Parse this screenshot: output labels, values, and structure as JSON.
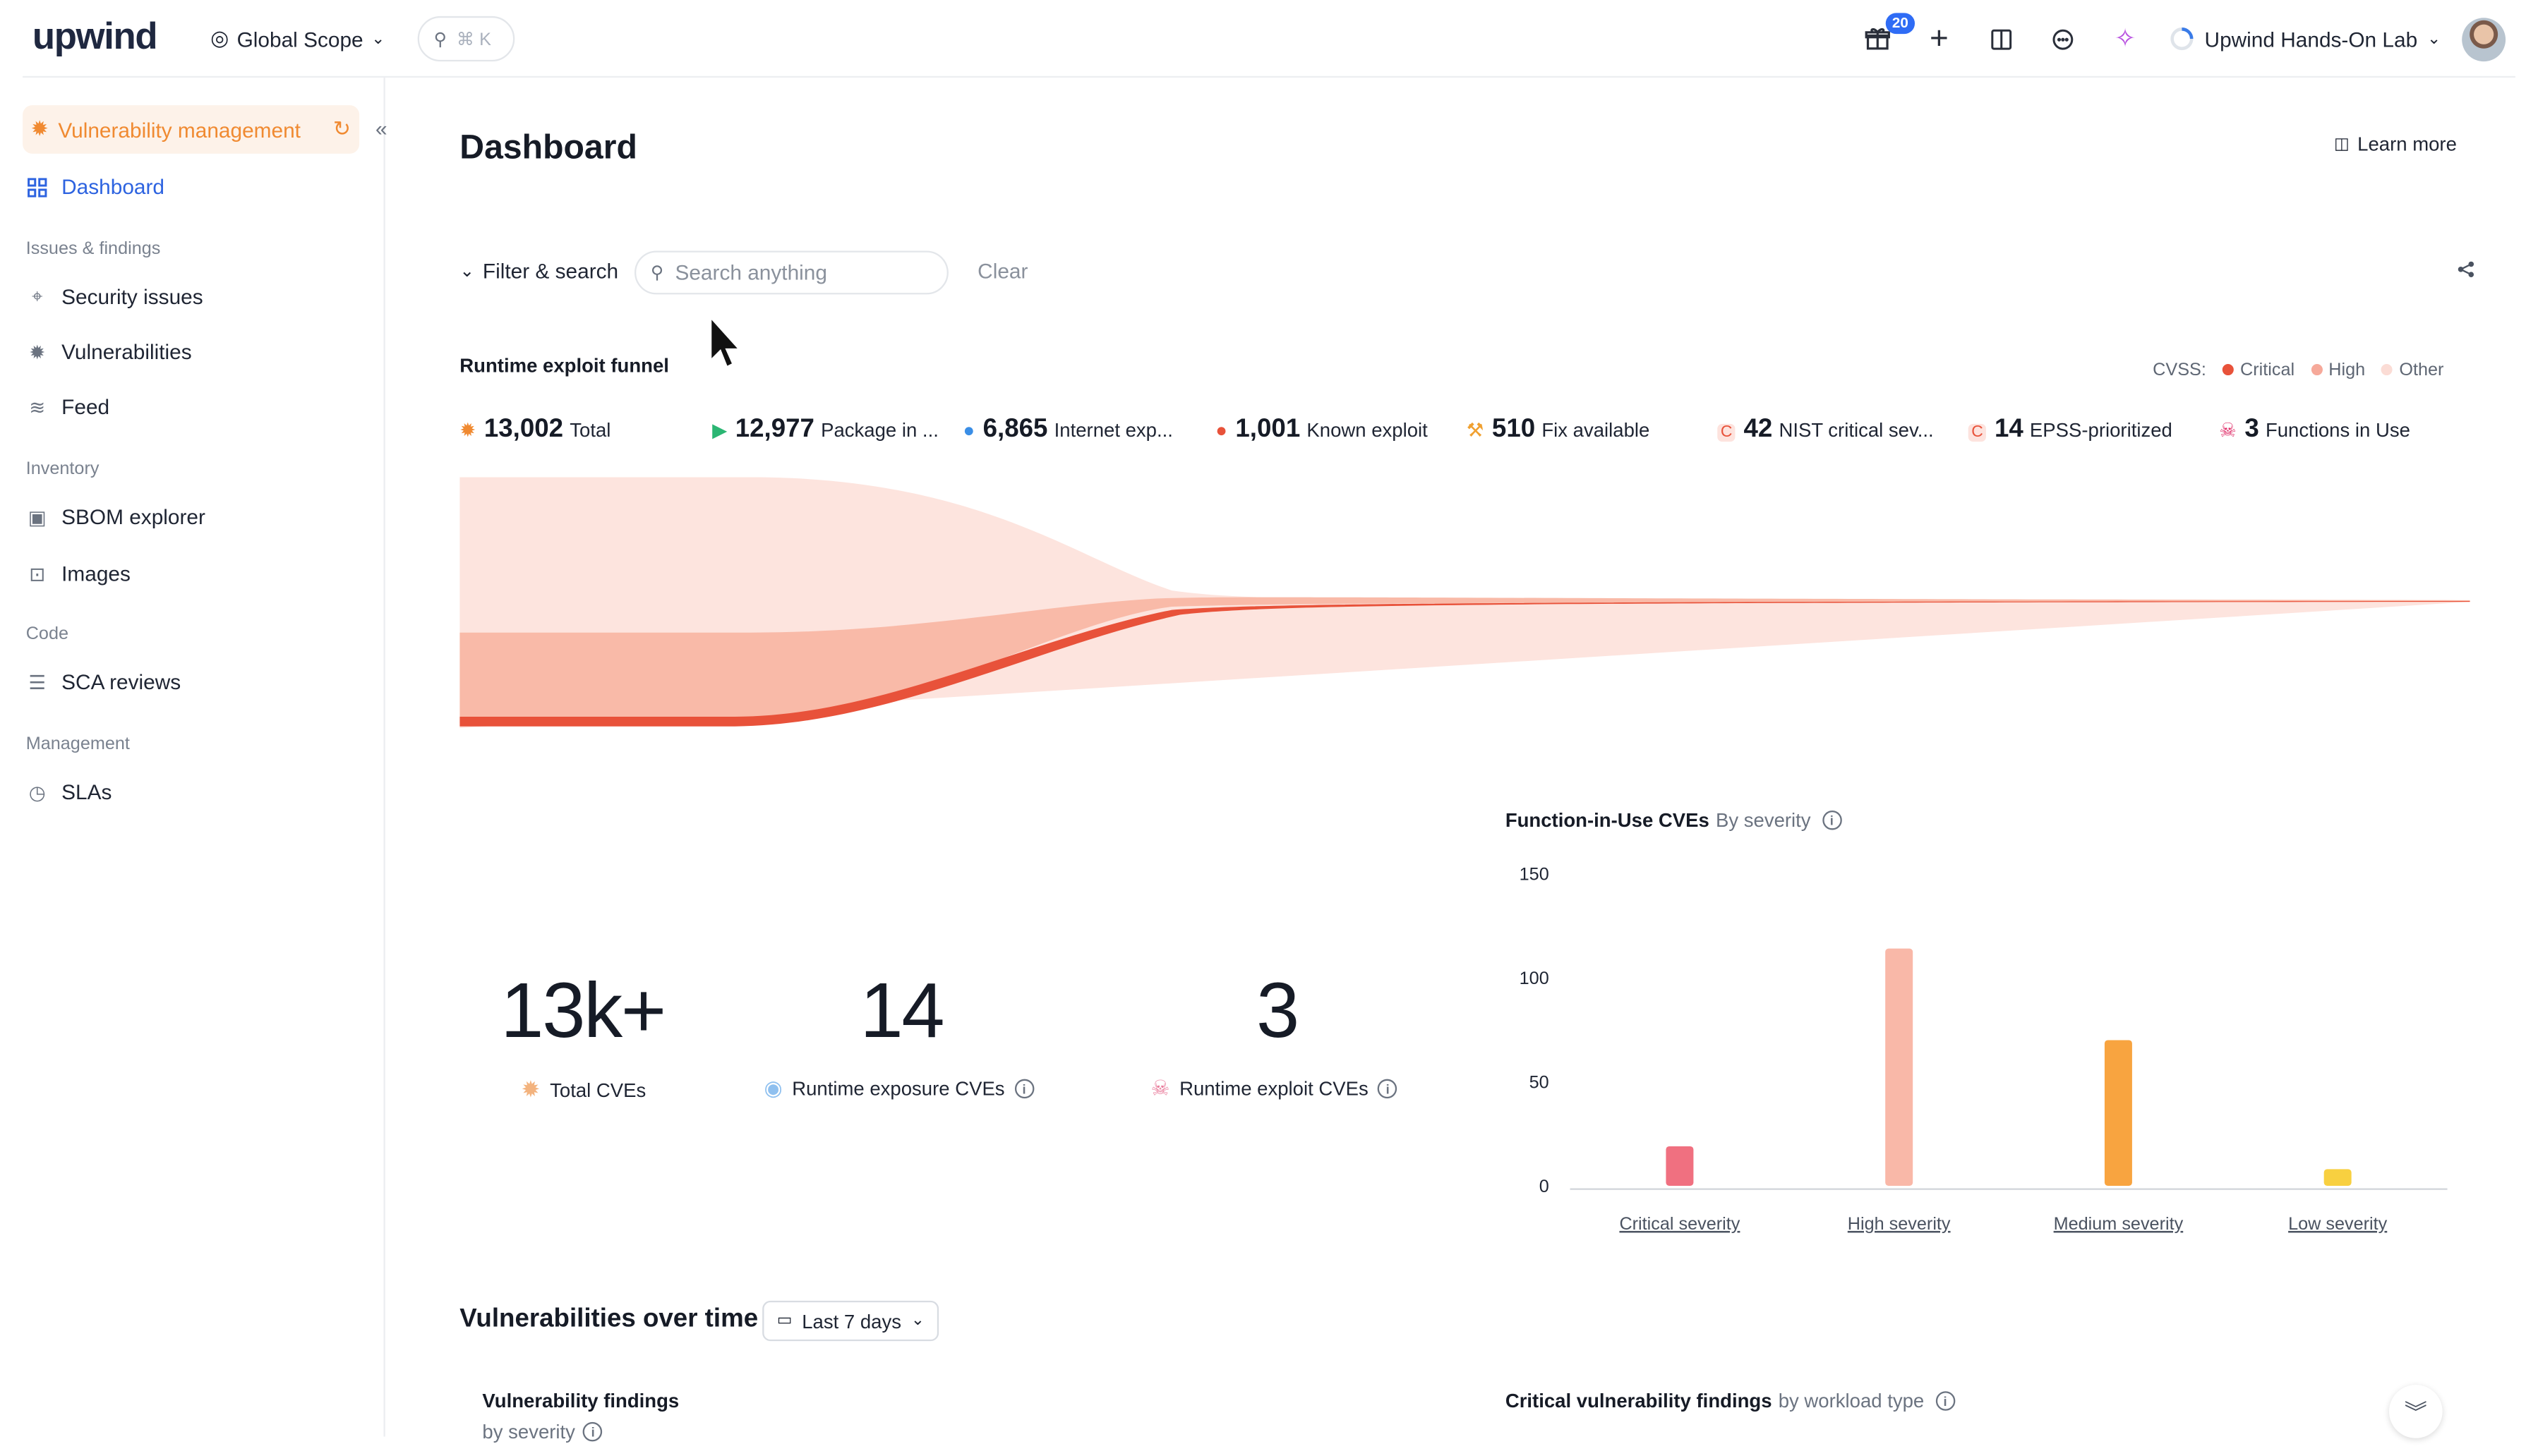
{
  "topbar": {
    "logo": "upwind",
    "scope": "Global Scope",
    "search_shortcut": "⌘ K",
    "gift_badge": "20",
    "org": "Upwind Hands-On Lab"
  },
  "sidebar": {
    "module": "Vulnerability management",
    "dashboard": "Dashboard",
    "sections": [
      {
        "title": "Issues & findings",
        "items": [
          "Security issues",
          "Vulnerabilities",
          "Feed"
        ]
      },
      {
        "title": "Inventory",
        "items": [
          "SBOM explorer",
          "Images"
        ]
      },
      {
        "title": "Code",
        "items": [
          "SCA reviews"
        ]
      },
      {
        "title": "Management",
        "items": [
          "SLAs"
        ]
      }
    ]
  },
  "main": {
    "title": "Dashboard",
    "learn_more": "Learn more",
    "filter_label": "Filter & search",
    "search_placeholder": "Search anything",
    "clear_label": "Clear",
    "funnel": {
      "title": "Runtime exploit funnel",
      "cvss_label": "CVSS:",
      "legend": [
        {
          "label": "Critical",
          "color": "#e8523a"
        },
        {
          "label": "High",
          "color": "#f6a99a"
        },
        {
          "label": "Other",
          "color": "#fbdcd5"
        }
      ],
      "stats": [
        {
          "value": "13,002",
          "label": "Total",
          "icon": "bug-icon",
          "color": "#f08a31"
        },
        {
          "value": "12,977",
          "label": "Package in ...",
          "icon": "play-icon",
          "color": "#2bb673"
        },
        {
          "value": "6,865",
          "label": "Internet exp...",
          "icon": "globe-icon",
          "color": "#3a8ee6"
        },
        {
          "value": "1,001",
          "label": "Known exploit",
          "icon": "alert-icon",
          "color": "#e8523a"
        },
        {
          "value": "510",
          "label": "Fix available",
          "icon": "wrench-icon",
          "color": "#f0a030"
        },
        {
          "value": "42",
          "label": "NIST critical sev...",
          "icon": "c-badge-icon",
          "color": "#e8523a"
        },
        {
          "value": "14",
          "label": "EPSS-prioritized",
          "icon": "c-badge-icon",
          "color": "#e8523a"
        },
        {
          "value": "3",
          "label": "Functions in Use",
          "icon": "skull-icon",
          "color": "#e0306a"
        }
      ]
    },
    "kpis": [
      {
        "value": "13k+",
        "label": "Total CVEs",
        "icon": "bug-icon",
        "info": false
      },
      {
        "value": "14",
        "label": "Runtime exposure CVEs",
        "icon": "globe-icon",
        "info": true
      },
      {
        "value": "3",
        "label": "Runtime exploit CVEs",
        "icon": "skull-icon",
        "info": true
      }
    ],
    "fiu_chart": {
      "title": "Function-in-Use CVEs",
      "subtitle": "By severity"
    },
    "over_time": {
      "title": "Vulnerabilities over time",
      "range": "Last 7 days",
      "left_title": "Vulnerability findings",
      "left_sub": "by severity",
      "right_title": "Critical vulnerability findings",
      "right_sub": "by workload type"
    }
  },
  "chart_data": {
    "type": "bar",
    "title": "Function-in-Use CVEs",
    "subtitle": "By severity",
    "categories": [
      "Critical severity",
      "High severity",
      "Medium severity",
      "Low severity"
    ],
    "values": [
      19,
      114,
      70,
      8
    ],
    "colors": [
      "#f07080",
      "#f9b8a8",
      "#f8a440",
      "#f8d040"
    ],
    "yticks": [
      0,
      50,
      100,
      150
    ],
    "ylim": [
      0,
      150
    ],
    "grid": false,
    "legend": "none"
  }
}
